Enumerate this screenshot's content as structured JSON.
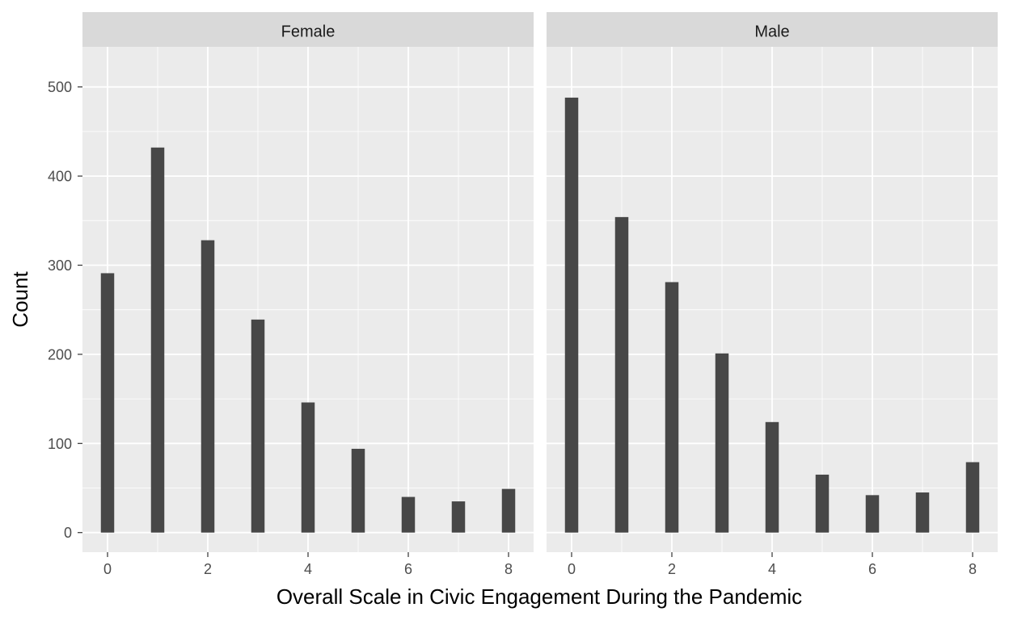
{
  "chart_data": {
    "type": "bar",
    "xlabel": "Overall Scale in Civic Engagement During the Pandemic",
    "ylabel": "Count",
    "xlim": [
      -0.5,
      8.5
    ],
    "ylim": [
      -22,
      545
    ],
    "x_ticks": [
      0,
      2,
      4,
      6,
      8
    ],
    "y_ticks": [
      0,
      100,
      200,
      300,
      400,
      500
    ],
    "grid": true,
    "colors": {
      "bar": "#474747",
      "panel_bg": "#ebebeb",
      "strip_bg": "#d9d9d9",
      "grid": "#ffffff"
    },
    "panels": [
      {
        "label": "Female",
        "bars": [
          {
            "x": 0,
            "value": 291
          },
          {
            "x": 1,
            "value": 432
          },
          {
            "x": 2,
            "value": 328
          },
          {
            "x": 3,
            "value": 239
          },
          {
            "x": 4,
            "value": 146
          },
          {
            "x": 5,
            "value": 94
          },
          {
            "x": 6,
            "value": 40
          },
          {
            "x": 7,
            "value": 35
          },
          {
            "x": 8,
            "value": 49
          }
        ]
      },
      {
        "label": "Male",
        "bars": [
          {
            "x": 0,
            "value": 488
          },
          {
            "x": 1,
            "value": 354
          },
          {
            "x": 2,
            "value": 281
          },
          {
            "x": 3,
            "value": 201
          },
          {
            "x": 4,
            "value": 124
          },
          {
            "x": 5,
            "value": 65
          },
          {
            "x": 6,
            "value": 42
          },
          {
            "x": 7,
            "value": 45
          },
          {
            "x": 8,
            "value": 79
          }
        ]
      }
    ]
  }
}
